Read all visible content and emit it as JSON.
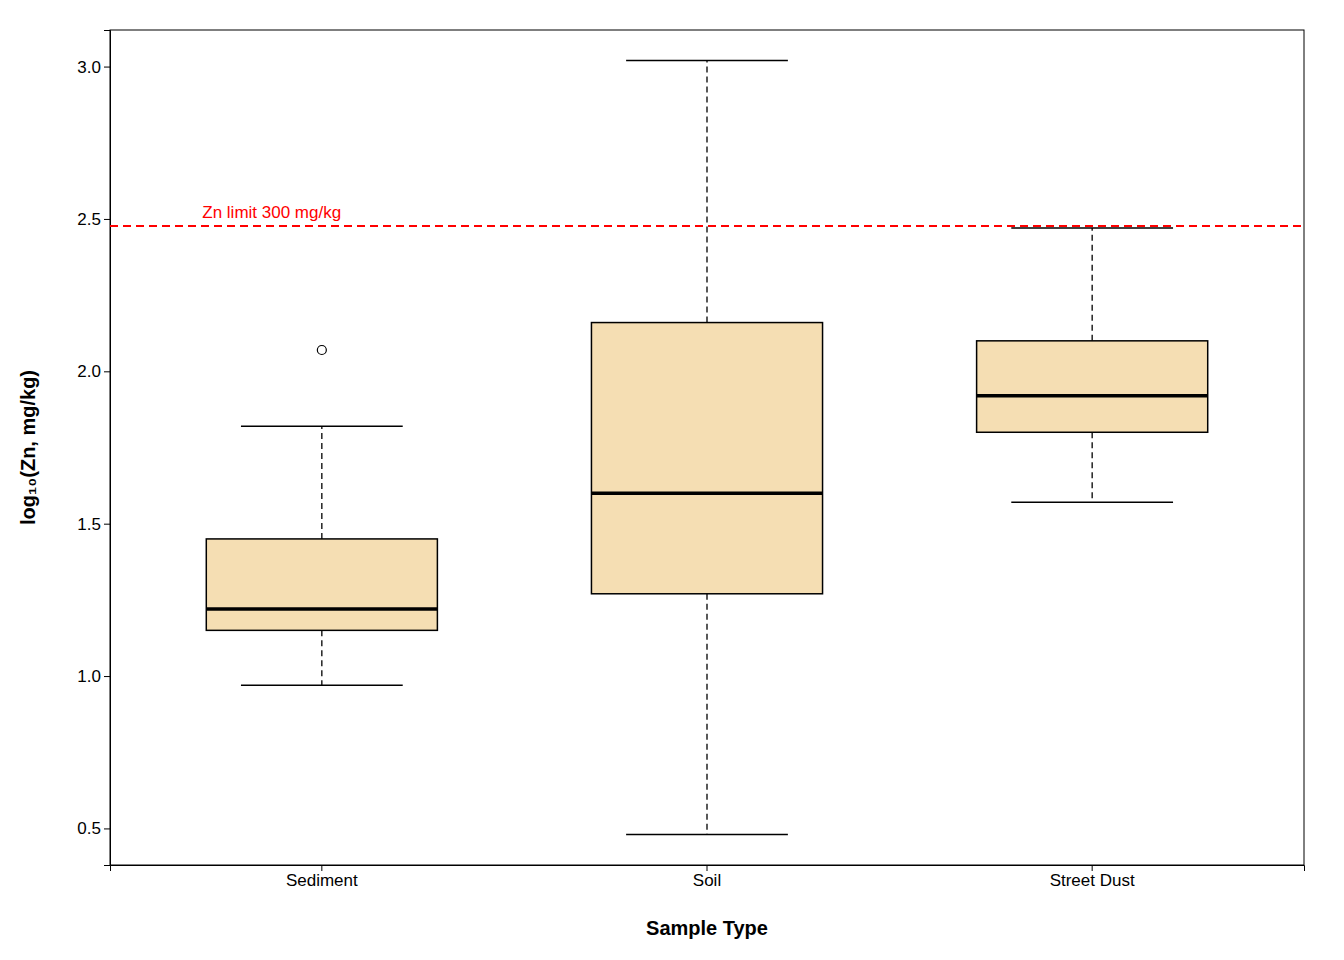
{
  "chart_data": {
    "type": "box",
    "xlabel": "Sample Type",
    "ylabel": "log₁₀(Zn, mg/kg)",
    "categories": [
      "Sediment",
      "Soil",
      "Street Dust"
    ],
    "values": [
      {
        "q1": 1.15,
        "median": 1.22,
        "q3": 1.45,
        "whisker_low": 0.97,
        "whisker_high": 1.82,
        "outliers": [
          2.07
        ]
      },
      {
        "q1": 1.27,
        "median": 1.6,
        "q3": 2.16,
        "whisker_low": 0.48,
        "whisker_high": 3.02,
        "outliers": []
      },
      {
        "q1": 1.8,
        "median": 1.92,
        "q3": 2.1,
        "whisker_low": 1.57,
        "whisker_high": 2.47,
        "outliers": []
      }
    ],
    "color": "#F5DEB3",
    "ylim": [
      0.38,
      3.12
    ],
    "yticks": [
      0.5,
      {
        "value": 1.0,
        "label": "1.0"
      },
      1.5,
      {
        "value": 2.0,
        "label": "2.0"
      },
      2.5,
      {
        "value": 3.0,
        "label": "3.0"
      }
    ],
    "grid": false,
    "annotations": [
      {
        "y": 2.477,
        "label": "Zn limit 300 mg/kg",
        "color": "#FF0000"
      }
    ]
  }
}
